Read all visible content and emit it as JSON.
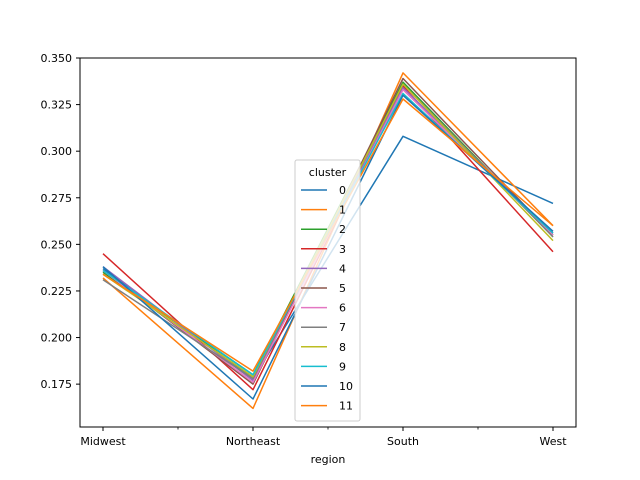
{
  "chart_data": {
    "type": "line",
    "xlabel": "region",
    "ylabel": "",
    "categories": [
      "Midwest",
      "Northeast",
      "South",
      "West"
    ],
    "ylim": [
      0.152,
      0.35
    ],
    "yticks": [
      0.175,
      0.2,
      0.225,
      0.25,
      0.275,
      0.3,
      0.325,
      0.35
    ],
    "ytick_labels": [
      "0.175",
      "0.200",
      "0.225",
      "0.250",
      "0.275",
      "0.300",
      "0.325",
      "0.350"
    ],
    "grid": false,
    "legend": {
      "title": "cluster",
      "placement": "center"
    },
    "series": [
      {
        "name": "0",
        "color": "#1f77b4",
        "values": [
          0.237,
          0.178,
          0.308,
          0.272
        ]
      },
      {
        "name": "1",
        "color": "#ff7f0e",
        "values": [
          0.232,
          0.162,
          0.342,
          0.26
        ]
      },
      {
        "name": "2",
        "color": "#2ca02c",
        "values": [
          0.235,
          0.18,
          0.337,
          0.254
        ]
      },
      {
        "name": "3",
        "color": "#d62728",
        "values": [
          0.245,
          0.172,
          0.335,
          0.246
        ]
      },
      {
        "name": "4",
        "color": "#9467bd",
        "values": [
          0.238,
          0.177,
          0.334,
          0.256
        ]
      },
      {
        "name": "5",
        "color": "#8c564b",
        "values": [
          0.236,
          0.175,
          0.339,
          0.255
        ]
      },
      {
        "name": "6",
        "color": "#e377c2",
        "values": [
          0.236,
          0.176,
          0.333,
          0.255
        ]
      },
      {
        "name": "7",
        "color": "#7f7f7f",
        "values": [
          0.231,
          0.178,
          0.336,
          0.254
        ]
      },
      {
        "name": "8",
        "color": "#bcbd22",
        "values": [
          0.234,
          0.179,
          0.336,
          0.252
        ]
      },
      {
        "name": "9",
        "color": "#17becf",
        "values": [
          0.236,
          0.18,
          0.331,
          0.256
        ]
      },
      {
        "name": "10",
        "color": "#1f77b4",
        "values": [
          0.238,
          0.167,
          0.33,
          0.257
        ]
      },
      {
        "name": "11",
        "color": "#ff7f0e",
        "values": [
          0.234,
          0.182,
          0.328,
          0.26
        ]
      }
    ]
  }
}
